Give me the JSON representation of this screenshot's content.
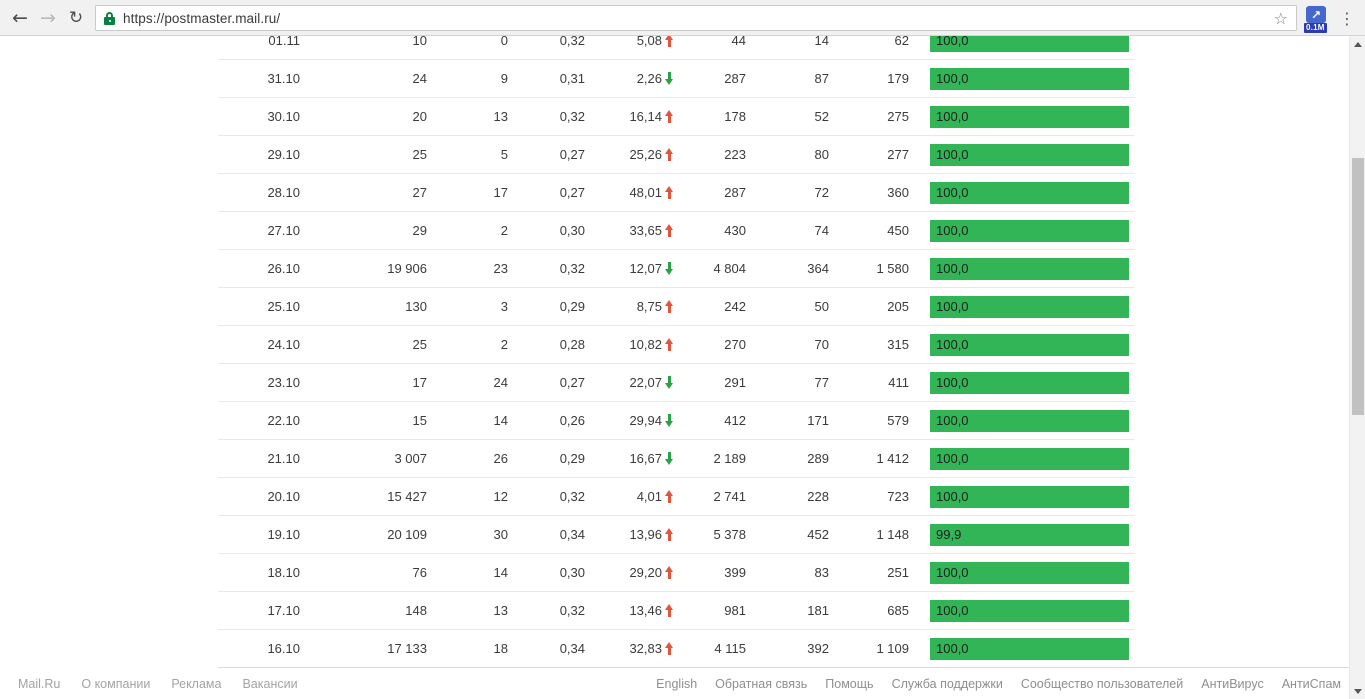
{
  "browser": {
    "url": "https://postmaster.mail.ru/",
    "back_glyph": "←",
    "forward_glyph": "→",
    "reload_glyph": "↻",
    "star_glyph": "☆",
    "menu_glyph": "⋮",
    "extension_arrow_glyph": "↗",
    "extension_badge": "0.1M"
  },
  "colors": {
    "bar_green": "#32b557",
    "trend_up_red": "#e2553a",
    "trend_down_green": "#2aa347",
    "lock_green": "#0b8043"
  },
  "table": {
    "rows": [
      {
        "date": "01.11",
        "v1": "10",
        "v2": "0",
        "v3": "0,32",
        "v4": "5,08",
        "trend": "up",
        "v5": "44",
        "v6": "14",
        "v7": "62",
        "bar": "100,0"
      },
      {
        "date": "31.10",
        "v1": "24",
        "v2": "9",
        "v3": "0,31",
        "v4": "2,26",
        "trend": "down",
        "v5": "287",
        "v6": "87",
        "v7": "179",
        "bar": "100,0"
      },
      {
        "date": "30.10",
        "v1": "20",
        "v2": "13",
        "v3": "0,32",
        "v4": "16,14",
        "trend": "up",
        "v5": "178",
        "v6": "52",
        "v7": "275",
        "bar": "100,0"
      },
      {
        "date": "29.10",
        "v1": "25",
        "v2": "5",
        "v3": "0,27",
        "v4": "25,26",
        "trend": "up",
        "v5": "223",
        "v6": "80",
        "v7": "277",
        "bar": "100,0"
      },
      {
        "date": "28.10",
        "v1": "27",
        "v2": "17",
        "v3": "0,27",
        "v4": "48,01",
        "trend": "up",
        "v5": "287",
        "v6": "72",
        "v7": "360",
        "bar": "100,0"
      },
      {
        "date": "27.10",
        "v1": "29",
        "v2": "2",
        "v3": "0,30",
        "v4": "33,65",
        "trend": "up",
        "v5": "430",
        "v6": "74",
        "v7": "450",
        "bar": "100,0"
      },
      {
        "date": "26.10",
        "v1": "19 906",
        "v2": "23",
        "v3": "0,32",
        "v4": "12,07",
        "trend": "down",
        "v5": "4 804",
        "v6": "364",
        "v7": "1 580",
        "bar": "100,0"
      },
      {
        "date": "25.10",
        "v1": "130",
        "v2": "3",
        "v3": "0,29",
        "v4": "8,75",
        "trend": "up",
        "v5": "242",
        "v6": "50",
        "v7": "205",
        "bar": "100,0"
      },
      {
        "date": "24.10",
        "v1": "25",
        "v2": "2",
        "v3": "0,28",
        "v4": "10,82",
        "trend": "up",
        "v5": "270",
        "v6": "70",
        "v7": "315",
        "bar": "100,0"
      },
      {
        "date": "23.10",
        "v1": "17",
        "v2": "24",
        "v3": "0,27",
        "v4": "22,07",
        "trend": "down",
        "v5": "291",
        "v6": "77",
        "v7": "411",
        "bar": "100,0"
      },
      {
        "date": "22.10",
        "v1": "15",
        "v2": "14",
        "v3": "0,26",
        "v4": "29,94",
        "trend": "down",
        "v5": "412",
        "v6": "171",
        "v7": "579",
        "bar": "100,0"
      },
      {
        "date": "21.10",
        "v1": "3 007",
        "v2": "26",
        "v3": "0,29",
        "v4": "16,67",
        "trend": "down",
        "v5": "2 189",
        "v6": "289",
        "v7": "1 412",
        "bar": "100,0"
      },
      {
        "date": "20.10",
        "v1": "15 427",
        "v2": "12",
        "v3": "0,32",
        "v4": "4,01",
        "trend": "up",
        "v5": "2 741",
        "v6": "228",
        "v7": "723",
        "bar": "100,0"
      },
      {
        "date": "19.10",
        "v1": "20 109",
        "v2": "30",
        "v3": "0,34",
        "v4": "13,96",
        "trend": "up",
        "v5": "5 378",
        "v6": "452",
        "v7": "1 148",
        "bar": "99,9"
      },
      {
        "date": "18.10",
        "v1": "76",
        "v2": "14",
        "v3": "0,30",
        "v4": "29,20",
        "trend": "up",
        "v5": "399",
        "v6": "83",
        "v7": "251",
        "bar": "100,0"
      },
      {
        "date": "17.10",
        "v1": "148",
        "v2": "13",
        "v3": "0,32",
        "v4": "13,46",
        "trend": "up",
        "v5": "981",
        "v6": "181",
        "v7": "685",
        "bar": "100,0"
      },
      {
        "date": "16.10",
        "v1": "17 133",
        "v2": "18",
        "v3": "0,34",
        "v4": "32,83",
        "trend": "up",
        "v5": "4 115",
        "v6": "392",
        "v7": "1 109",
        "bar": "100,0"
      }
    ]
  },
  "footer": {
    "left": [
      "Mail.Ru",
      "О компании",
      "Реклама",
      "Вакансии"
    ],
    "right": [
      "English",
      "Обратная связь",
      "Помощь",
      "Служба поддержки",
      "Сообщество пользователей",
      "АнтиВирус",
      "АнтиСпам"
    ]
  }
}
